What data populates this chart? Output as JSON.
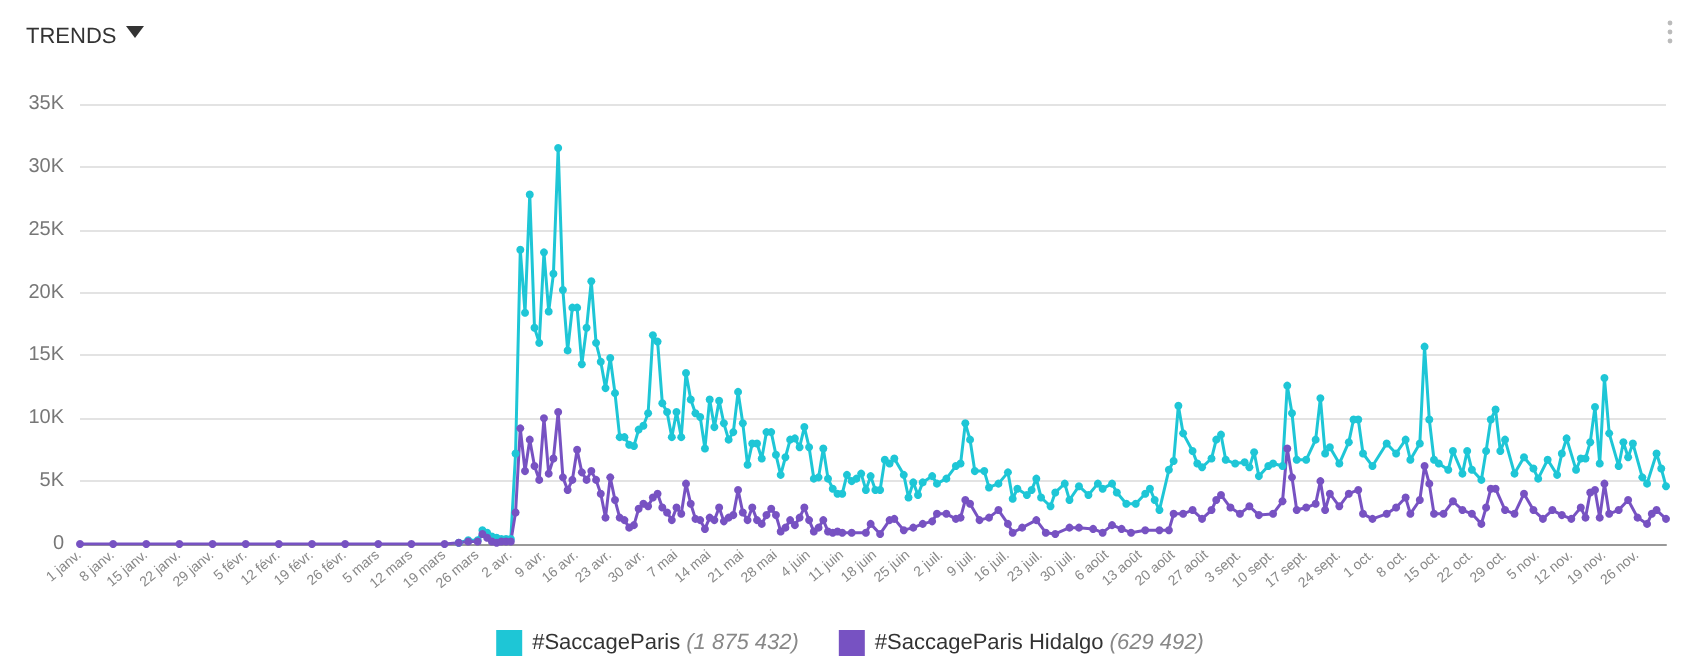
{
  "chart_data": {
    "type": "line",
    "title": "TRENDS",
    "legend": "bottom",
    "grid": "y",
    "marker": "circle",
    "line_style": "solid",
    "xlim": [
      "--01-01",
      "--12-02"
    ],
    "xticks": [
      {
        "value": "--01-01",
        "label": "1 janv."
      },
      {
        "value": "--01-08",
        "label": "8 janv."
      },
      {
        "value": "--01-15",
        "label": "15 janv."
      },
      {
        "value": "--01-22",
        "label": "22 janv."
      },
      {
        "value": "--01-29",
        "label": "29 janv."
      },
      {
        "value": "--02-05",
        "label": "5 févr."
      },
      {
        "value": "--02-12",
        "label": "12 févr."
      },
      {
        "value": "--02-19",
        "label": "19 févr."
      },
      {
        "value": "--02-26",
        "label": "26 févr."
      },
      {
        "value": "--03-05",
        "label": "5 mars"
      },
      {
        "value": "--03-12",
        "label": "12 mars"
      },
      {
        "value": "--03-19",
        "label": "19 mars"
      },
      {
        "value": "--03-26",
        "label": "26 mars"
      },
      {
        "value": "--04-02",
        "label": "2 avr."
      },
      {
        "value": "--04-09",
        "label": "9 avr."
      },
      {
        "value": "--04-16",
        "label": "16 avr."
      },
      {
        "value": "--04-23",
        "label": "23 avr."
      },
      {
        "value": "--04-30",
        "label": "30 avr."
      },
      {
        "value": "--05-07",
        "label": "7 mai"
      },
      {
        "value": "--05-14",
        "label": "14 mai"
      },
      {
        "value": "--05-21",
        "label": "21 mai"
      },
      {
        "value": "--05-28",
        "label": "28 mai"
      },
      {
        "value": "--06-04",
        "label": "4 juin"
      },
      {
        "value": "--06-11",
        "label": "11 juin"
      },
      {
        "value": "--06-18",
        "label": "18 juin"
      },
      {
        "value": "--06-25",
        "label": "25 juin"
      },
      {
        "value": "--07-02",
        "label": "2 juil."
      },
      {
        "value": "--07-09",
        "label": "9 juil."
      },
      {
        "value": "--07-16",
        "label": "16 juil."
      },
      {
        "value": "--07-23",
        "label": "23 juil."
      },
      {
        "value": "--07-30",
        "label": "30 juil."
      },
      {
        "value": "--08-06",
        "label": "6 août"
      },
      {
        "value": "--08-13",
        "label": "13 août"
      },
      {
        "value": "--08-20",
        "label": "20 août"
      },
      {
        "value": "--08-27",
        "label": "27 août"
      },
      {
        "value": "--09-03",
        "label": "3 sept."
      },
      {
        "value": "--09-10",
        "label": "10 sept."
      },
      {
        "value": "--09-17",
        "label": "17 sept."
      },
      {
        "value": "--09-24",
        "label": "24 sept."
      },
      {
        "value": "--10-01",
        "label": "1 oct."
      },
      {
        "value": "--10-08",
        "label": "8 oct."
      },
      {
        "value": "--10-15",
        "label": "15 oct."
      },
      {
        "value": "--10-22",
        "label": "22 oct."
      },
      {
        "value": "--10-29",
        "label": "29 oct."
      },
      {
        "value": "--11-05",
        "label": "5 nov."
      },
      {
        "value": "--11-12",
        "label": "12 nov."
      },
      {
        "value": "--11-19",
        "label": "19 nov."
      },
      {
        "value": "--11-26",
        "label": "26 nov."
      }
    ],
    "ylim": [
      0,
      35000
    ],
    "yticks": [
      0,
      {
        "value": 5000,
        "label": "5K"
      },
      {
        "value": 10000,
        "label": "10K"
      },
      {
        "value": 15000,
        "label": "15K"
      },
      {
        "value": 20000,
        "label": "20K"
      },
      {
        "value": 25000,
        "label": "25K"
      },
      {
        "value": 30000,
        "label": "30K"
      },
      {
        "value": 35000,
        "label": "35K"
      }
    ],
    "series": [
      {
        "name": "#SaccageParis (1 875 432)",
        "color": "#1ec6d6",
        "x": [
          "--03-22",
          "--03-24",
          "--03-26",
          "--03-27",
          "--03-28",
          "--03-29",
          "--03-30",
          "--03-31",
          "--04-01",
          "--04-02",
          "--04-03",
          "--04-04",
          "--04-05",
          "--04-06",
          "--04-07",
          "--04-08",
          "--04-09",
          "--04-10",
          "--04-11",
          "--04-12",
          "--04-13",
          "--04-14",
          "--04-15",
          "--04-16",
          "--04-17",
          "--04-18",
          "--04-19",
          "--04-20",
          "--04-21",
          "--04-22",
          "--04-23",
          "--04-24",
          "--04-25",
          "--04-26",
          "--04-27",
          "--04-28",
          "--04-29",
          "--04-30",
          "--05-01",
          "--05-02",
          "--05-03",
          "--05-04",
          "--05-05",
          "--05-06",
          "--05-07",
          "--05-08",
          "--05-09",
          "--05-10",
          "--05-11",
          "--05-12",
          "--05-13",
          "--05-14",
          "--05-15",
          "--05-16",
          "--05-17",
          "--05-18",
          "--05-19",
          "--05-20",
          "--05-21",
          "--05-22",
          "--05-23",
          "--05-24",
          "--05-25",
          "--05-26",
          "--05-27",
          "--05-28",
          "--05-29",
          "--05-30",
          "--05-31",
          "--06-01",
          "--06-02",
          "--06-03",
          "--06-04",
          "--06-05",
          "--06-06",
          "--06-07",
          "--06-08",
          "--06-09",
          "--06-10",
          "--06-11",
          "--06-12",
          "--06-13",
          "--06-14",
          "--06-15",
          "--06-16",
          "--06-17",
          "--06-18",
          "--06-19",
          "--06-20",
          "--06-21",
          "--06-22",
          "--06-24",
          "--06-25",
          "--06-26",
          "--06-27",
          "--06-28",
          "--06-30",
          "--07-01",
          "--07-03",
          "--07-05",
          "--07-06",
          "--07-07",
          "--07-08",
          "--07-09",
          "--07-11",
          "--07-12",
          "--07-14",
          "--07-16",
          "--07-17",
          "--07-18",
          "--07-20",
          "--07-21",
          "--07-22",
          "--07-23",
          "--07-25",
          "--07-26",
          "--07-28",
          "--07-29",
          "--07-31",
          "--08-02",
          "--08-04",
          "--08-05",
          "--08-07",
          "--08-08",
          "--08-10",
          "--08-12",
          "--08-14",
          "--08-15",
          "--08-16",
          "--08-17",
          "--08-19",
          "--08-20",
          "--08-21",
          "--08-22",
          "--08-24",
          "--08-25",
          "--08-26",
          "--08-28",
          "--08-29",
          "--08-30",
          "--08-31",
          "--09-02",
          "--09-04",
          "--09-05",
          "--09-06",
          "--09-07",
          "--09-09",
          "--09-10",
          "--09-12",
          "--09-13",
          "--09-14",
          "--09-15",
          "--09-17",
          "--09-19",
          "--09-20",
          "--09-21",
          "--09-22",
          "--09-24",
          "--09-26",
          "--09-27",
          "--09-28",
          "--09-29",
          "--10-01",
          "--10-04",
          "--10-06",
          "--10-08",
          "--10-09",
          "--10-11",
          "--10-12",
          "--10-13",
          "--10-14",
          "--10-15",
          "--10-17",
          "--10-18",
          "--10-20",
          "--10-21",
          "--10-22",
          "--10-24",
          "--10-25",
          "--10-26",
          "--10-27",
          "--10-28",
          "--10-29",
          "--10-31",
          "--11-02",
          "--11-04",
          "--11-05",
          "--11-07",
          "--11-09",
          "--11-10",
          "--11-11",
          "--11-13",
          "--11-14",
          "--11-15",
          "--11-16",
          "--11-17",
          "--11-18",
          "--11-19",
          "--11-20",
          "--11-22",
          "--11-23",
          "--11-24",
          "--11-25",
          "--11-27",
          "--11-28",
          "--11-30",
          "--12-01",
          "--12-02"
        ],
        "values": [
          100,
          300,
          300,
          1100,
          900,
          600,
          500,
          400,
          400,
          400,
          7200,
          23400,
          18400,
          27800,
          17200,
          16000,
          23200,
          18500,
          21500,
          31500,
          20200,
          15400,
          18800,
          18800,
          14300,
          17200,
          20900,
          16000,
          14500,
          12400,
          14800,
          12000,
          8500,
          8500,
          7900,
          7800,
          9100,
          9400,
          10400,
          16600,
          16100,
          11200,
          10500,
          8500,
          10500,
          8500,
          13600,
          11500,
          10400,
          10100,
          7600,
          11500,
          9300,
          11400,
          9600,
          8300,
          8900,
          12100,
          9600,
          6300,
          8000,
          8000,
          6800,
          8900,
          8900,
          7100,
          5500,
          6900,
          8300,
          8400,
          7700,
          9300,
          7700,
          5200,
          5300,
          7600,
          5200,
          4400,
          4000,
          4000,
          5500,
          5000,
          5200,
          5600,
          4300,
          5400,
          4300,
          4300,
          6700,
          6400,
          6800,
          5500,
          3700,
          4900,
          3900,
          4900,
          5400,
          4800,
          5200,
          6200,
          6400,
          9600,
          8300,
          5800,
          5800,
          4500,
          4800,
          5700,
          3600,
          4400,
          3900,
          4300,
          5200,
          3700,
          3000,
          4100,
          4800,
          3500,
          4600,
          3900,
          4800,
          4400,
          4800,
          4100,
          3200,
          3200,
          4000,
          4400,
          3500,
          2700,
          5900,
          6600,
          11000,
          8800,
          7400,
          6400,
          6100,
          6800,
          8300,
          8700,
          6700,
          6400,
          6500,
          6100,
          7300,
          5400,
          6200,
          6400,
          6200,
          12600,
          10400,
          6700,
          6700,
          8300,
          11600,
          7200,
          7700,
          6400,
          8100,
          9900,
          9900,
          7200,
          6200,
          8000,
          7200,
          8300,
          6700,
          8000,
          15700,
          9900,
          6700,
          6400,
          5900,
          7400,
          5600,
          7400,
          5900,
          5100,
          7400,
          9900,
          10700,
          7400,
          8300,
          5600,
          6900,
          6000,
          5200,
          6700,
          5500,
          7200,
          8400,
          5900,
          6800,
          6800,
          8100,
          10900,
          6400,
          13200,
          8800,
          6200,
          8100,
          6900,
          8000,
          5300,
          4800,
          7200,
          6000,
          4600
        ]
      },
      {
        "name": "#SaccageParis Hidalgo (629 492)",
        "color": "#7752c2",
        "x": [
          "--01-01",
          "--01-08",
          "--01-15",
          "--01-22",
          "--01-29",
          "--02-05",
          "--02-12",
          "--02-19",
          "--02-26",
          "--03-05",
          "--03-12",
          "--03-19",
          "--03-22",
          "--03-24",
          "--03-26",
          "--03-27",
          "--03-28",
          "--03-29",
          "--03-30",
          "--03-31",
          "--04-01",
          "--04-02",
          "--04-03",
          "--04-04",
          "--04-05",
          "--04-06",
          "--04-07",
          "--04-08",
          "--04-09",
          "--04-10",
          "--04-11",
          "--04-12",
          "--04-13",
          "--04-14",
          "--04-15",
          "--04-16",
          "--04-17",
          "--04-18",
          "--04-19",
          "--04-20",
          "--04-21",
          "--04-22",
          "--04-23",
          "--04-24",
          "--04-25",
          "--04-26",
          "--04-27",
          "--04-28",
          "--04-29",
          "--04-30",
          "--05-01",
          "--05-02",
          "--05-03",
          "--05-04",
          "--05-05",
          "--05-06",
          "--05-07",
          "--05-08",
          "--05-09",
          "--05-10",
          "--05-11",
          "--05-12",
          "--05-13",
          "--05-14",
          "--05-15",
          "--05-16",
          "--05-17",
          "--05-18",
          "--05-19",
          "--05-20",
          "--05-21",
          "--05-22",
          "--05-23",
          "--05-24",
          "--05-25",
          "--05-26",
          "--05-27",
          "--05-28",
          "--05-29",
          "--05-30",
          "--05-31",
          "--06-01",
          "--06-02",
          "--06-03",
          "--06-04",
          "--06-05",
          "--06-06",
          "--06-07",
          "--06-08",
          "--06-09",
          "--06-10",
          "--06-11",
          "--06-13",
          "--06-16",
          "--06-17",
          "--06-19",
          "--06-21",
          "--06-22",
          "--06-24",
          "--06-26",
          "--06-28",
          "--06-30",
          "--07-01",
          "--07-03",
          "--07-05",
          "--07-06",
          "--07-07",
          "--07-08",
          "--07-10",
          "--07-12",
          "--07-14",
          "--07-16",
          "--07-17",
          "--07-19",
          "--07-22",
          "--07-24",
          "--07-26",
          "--07-29",
          "--07-31",
          "--08-03",
          "--08-05",
          "--08-07",
          "--08-09",
          "--08-11",
          "--08-14",
          "--08-17",
          "--08-19",
          "--08-20",
          "--08-22",
          "--08-24",
          "--08-26",
          "--08-28",
          "--08-29",
          "--08-30",
          "--09-01",
          "--09-03",
          "--09-05",
          "--09-07",
          "--09-10",
          "--09-12",
          "--09-13",
          "--09-14",
          "--09-15",
          "--09-17",
          "--09-19",
          "--09-20",
          "--09-21",
          "--09-22",
          "--09-24",
          "--09-26",
          "--09-28",
          "--09-29",
          "--10-01",
          "--10-04",
          "--10-06",
          "--10-08",
          "--10-09",
          "--10-11",
          "--10-12",
          "--10-13",
          "--10-14",
          "--10-16",
          "--10-18",
          "--10-20",
          "--10-22",
          "--10-24",
          "--10-25",
          "--10-26",
          "--10-27",
          "--10-29",
          "--10-31",
          "--11-02",
          "--11-04",
          "--11-06",
          "--11-08",
          "--11-10",
          "--11-12",
          "--11-14",
          "--11-15",
          "--11-16",
          "--11-17",
          "--11-18",
          "--11-19",
          "--11-20",
          "--11-22",
          "--11-24",
          "--11-26",
          "--11-28",
          "--11-29",
          "--11-30",
          "--12-02"
        ],
        "values": [
          0,
          0,
          0,
          0,
          0,
          0,
          0,
          0,
          0,
          0,
          0,
          0,
          100,
          200,
          200,
          800,
          500,
          200,
          100,
          200,
          200,
          200,
          2500,
          9200,
          5800,
          8300,
          6200,
          5100,
          10000,
          5600,
          6800,
          10500,
          5300,
          4300,
          5100,
          7500,
          5700,
          5100,
          5800,
          5100,
          4000,
          2100,
          5300,
          3500,
          2100,
          1900,
          1300,
          1500,
          2800,
          3200,
          3000,
          3700,
          4000,
          2900,
          2500,
          1900,
          2900,
          2400,
          4800,
          3200,
          2000,
          1900,
          1200,
          2100,
          1900,
          2900,
          1800,
          2100,
          2300,
          4300,
          2500,
          1900,
          2900,
          1900,
          1600,
          2300,
          2800,
          2300,
          1000,
          1300,
          1900,
          1500,
          2100,
          2900,
          1900,
          1000,
          1300,
          1900,
          1000,
          900,
          1000,
          900,
          900,
          900,
          1600,
          800,
          1900,
          2000,
          1100,
          1300,
          1600,
          1800,
          2400,
          2400,
          2000,
          2100,
          3500,
          3200,
          1900,
          2100,
          2700,
          1600,
          900,
          1300,
          1900,
          900,
          800,
          1300,
          1300,
          1200,
          900,
          1500,
          1200,
          900,
          1100,
          1100,
          1100,
          2400,
          2400,
          2700,
          2000,
          2700,
          3500,
          3900,
          2900,
          2400,
          3000,
          2300,
          2400,
          3400,
          7600,
          5300,
          2700,
          2900,
          3200,
          5000,
          2700,
          4000,
          3000,
          4000,
          4300,
          2400,
          2000,
          2400,
          2900,
          3700,
          2400,
          3500,
          6200,
          4800,
          2400,
          2400,
          3400,
          2700,
          2400,
          1600,
          2900,
          4400,
          4400,
          2700,
          2400,
          4000,
          2700,
          2000,
          2700,
          2300,
          2000,
          2900,
          2100,
          4100,
          4300,
          2100,
          4800,
          2400,
          2700,
          3500,
          2100,
          1600,
          2400,
          2700,
          2000
        ]
      }
    ]
  }
}
